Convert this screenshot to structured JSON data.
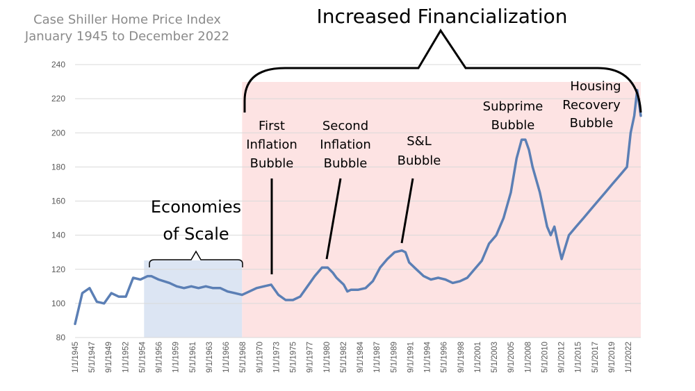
{
  "chart_data": {
    "type": "line",
    "title": [
      "Case Shiller Home Price Index",
      "January 1945 to December 2022"
    ],
    "xlabel": "",
    "ylabel": "",
    "ylim": [
      80,
      240
    ],
    "yticks": [
      "80",
      "100",
      "120",
      "140",
      "160",
      "180",
      "200",
      "220",
      "240"
    ],
    "xlim": [
      1945.0,
      2022.9
    ],
    "xticks": [
      "1/1/1945",
      "5/1/1947",
      "9/1/1949",
      "1/1/1952",
      "5/1/1954",
      "9/1/1956",
      "1/1/1959",
      "5/1/1961",
      "9/1/1963",
      "1/1/1966",
      "5/1/1968",
      "9/1/1970",
      "1/1/1973",
      "5/1/1975",
      "9/1/1977",
      "1/1/1980",
      "5/1/1982",
      "9/1/1984",
      "1/1/1987",
      "5/1/1989",
      "9/1/1991",
      "1/1/1994",
      "5/1/1996",
      "9/1/1998",
      "1/1/2001",
      "5/1/2003",
      "9/1/2005",
      "1/1/2008",
      "5/1/2010",
      "9/1/2012",
      "1/1/2015",
      "5/1/2017",
      "9/1/2019",
      "1/1/2022"
    ],
    "grid": true,
    "series": [
      {
        "name": "Case Shiller Home Price Index",
        "color": "#5b7fb5",
        "x": [
          1945.0,
          1946.0,
          1947.0,
          1948.0,
          1949.0,
          1950.0,
          1951.0,
          1952.0,
          1953.0,
          1954.0,
          1955.0,
          1955.5,
          1956.5,
          1958.0,
          1959.0,
          1960.0,
          1961.0,
          1962.0,
          1963.0,
          1964.0,
          1965.0,
          1966.0,
          1967.0,
          1968.0,
          1969.0,
          1970.0,
          1971.0,
          1972.0,
          1973.0,
          1974.0,
          1975.0,
          1976.0,
          1977.0,
          1978.0,
          1979.0,
          1979.8,
          1980.5,
          1981.0,
          1982.0,
          1982.5,
          1983.0,
          1984.0,
          1985.0,
          1986.0,
          1987.0,
          1988.0,
          1989.0,
          1990.0,
          1990.5,
          1991.0,
          1992.0,
          1993.0,
          1994.0,
          1995.0,
          1996.0,
          1997.0,
          1998.0,
          1999.0,
          2000.0,
          2001.0,
          2002.0,
          2003.0,
          2004.0,
          2005.0,
          2005.8,
          2006.5,
          2007.0,
          2007.5,
          2008.0,
          2009.0,
          2010.0,
          2010.5,
          2011.0,
          2011.5,
          2012.0,
          2013.0,
          2014.0,
          2015.0,
          2016.0,
          2017.0,
          2018.0,
          2019.0,
          2020.0,
          2021.0,
          2021.5,
          2022.0,
          2022.4,
          2022.9
        ],
        "values": [
          88,
          106,
          109,
          101,
          100,
          106,
          104,
          104,
          115,
          114,
          116,
          116,
          114,
          112,
          110,
          109,
          110,
          109,
          110,
          109,
          109,
          107,
          106,
          105,
          107,
          109,
          110,
          111,
          105,
          102,
          102,
          104,
          110,
          116,
          121,
          121,
          118,
          115,
          111,
          107,
          108,
          108,
          109,
          113,
          121,
          126,
          130,
          131,
          130,
          124,
          120,
          116,
          114,
          115,
          114,
          112,
          113,
          115,
          120,
          125,
          135,
          140,
          150,
          165,
          185,
          196,
          196,
          190,
          180,
          165,
          145,
          140,
          145,
          135,
          126,
          140,
          145,
          150,
          155,
          160,
          165,
          170,
          175,
          180,
          200,
          210,
          225,
          210
        ]
      }
    ],
    "shaded_regions": [
      {
        "name": "Economies of Scale",
        "x_start": 1954.5,
        "x_end": 1968.0,
        "color": "#dce5f3"
      },
      {
        "name": "Increased Financialization",
        "x_start": 1968.0,
        "x_end": 2022.9,
        "color": "#fde3e3"
      }
    ],
    "annotations": {
      "financialization": "Increased Financialization",
      "economies": [
        "Economies",
        "of Scale"
      ],
      "first": [
        "First",
        "Inflation",
        "Bubble"
      ],
      "second": [
        "Second",
        "Inflation",
        "Bubble"
      ],
      "sl": [
        "S&L",
        "Bubble"
      ],
      "subprime": [
        "Subprime",
        "Bubble"
      ],
      "recovery": [
        "Housing",
        "Recovery",
        "Bubble"
      ]
    }
  }
}
